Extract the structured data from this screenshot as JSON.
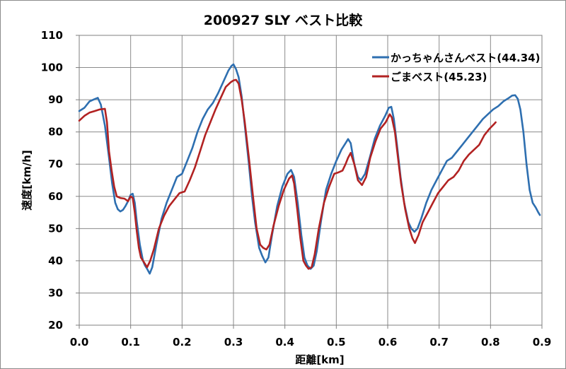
{
  "chart_data": {
    "type": "line",
    "title": "200927 SLY ベスト比較",
    "xlabel": "距離[km]",
    "ylabel": "速度[km/h]",
    "xlim": [
      0,
      0.9
    ],
    "ylim": [
      20,
      110
    ],
    "x_ticks": [
      "0.0",
      "0.1",
      "0.2",
      "0.3",
      "0.4",
      "0.5",
      "0.6",
      "0.7",
      "0.8",
      "0.9"
    ],
    "y_ticks": [
      "20",
      "30",
      "40",
      "50",
      "60",
      "70",
      "80",
      "90",
      "100",
      "110"
    ],
    "grid": true,
    "legend_position": "top-right",
    "series": [
      {
        "name": "かっちゃんさんベスト(44.34)",
        "color": "#2e6fb0",
        "points": [
          [
            0.0,
            86.5
          ],
          [
            0.01,
            87.5
          ],
          [
            0.02,
            89.5
          ],
          [
            0.03,
            90.2
          ],
          [
            0.036,
            90.6
          ],
          [
            0.042,
            88.5
          ],
          [
            0.05,
            82
          ],
          [
            0.058,
            72
          ],
          [
            0.064,
            64
          ],
          [
            0.07,
            58
          ],
          [
            0.075,
            56
          ],
          [
            0.08,
            55.3
          ],
          [
            0.085,
            55.8
          ],
          [
            0.09,
            57
          ],
          [
            0.095,
            58.5
          ],
          [
            0.1,
            60.5
          ],
          [
            0.104,
            60.8
          ],
          [
            0.108,
            58
          ],
          [
            0.112,
            52
          ],
          [
            0.118,
            45
          ],
          [
            0.124,
            40
          ],
          [
            0.128,
            38.5
          ],
          [
            0.132,
            37.5
          ],
          [
            0.137,
            36
          ],
          [
            0.142,
            38
          ],
          [
            0.15,
            45
          ],
          [
            0.16,
            53
          ],
          [
            0.17,
            58
          ],
          [
            0.18,
            62
          ],
          [
            0.19,
            66
          ],
          [
            0.2,
            67
          ],
          [
            0.21,
            71
          ],
          [
            0.22,
            75
          ],
          [
            0.23,
            80
          ],
          [
            0.24,
            84
          ],
          [
            0.25,
            87
          ],
          [
            0.26,
            89
          ],
          [
            0.27,
            92
          ],
          [
            0.28,
            95.5
          ],
          [
            0.29,
            99
          ],
          [
            0.296,
            100.5
          ],
          [
            0.3,
            101
          ],
          [
            0.305,
            99.5
          ],
          [
            0.31,
            97
          ],
          [
            0.316,
            91
          ],
          [
            0.322,
            82
          ],
          [
            0.33,
            70
          ],
          [
            0.336,
            60
          ],
          [
            0.342,
            52
          ],
          [
            0.35,
            44
          ],
          [
            0.356,
            41.5
          ],
          [
            0.362,
            39.5
          ],
          [
            0.368,
            41
          ],
          [
            0.375,
            48
          ],
          [
            0.385,
            57
          ],
          [
            0.395,
            63
          ],
          [
            0.405,
            67
          ],
          [
            0.412,
            68.2
          ],
          [
            0.418,
            66
          ],
          [
            0.425,
            58
          ],
          [
            0.432,
            48
          ],
          [
            0.438,
            41
          ],
          [
            0.444,
            38.5
          ],
          [
            0.45,
            37.5
          ],
          [
            0.456,
            38.5
          ],
          [
            0.462,
            43
          ],
          [
            0.47,
            52
          ],
          [
            0.48,
            62
          ],
          [
            0.49,
            67
          ],
          [
            0.5,
            71
          ],
          [
            0.51,
            74.5
          ],
          [
            0.518,
            76.5
          ],
          [
            0.523,
            77.8
          ],
          [
            0.528,
            76.5
          ],
          [
            0.535,
            70
          ],
          [
            0.542,
            66
          ],
          [
            0.548,
            65
          ],
          [
            0.556,
            67
          ],
          [
            0.565,
            72
          ],
          [
            0.575,
            78
          ],
          [
            0.585,
            82
          ],
          [
            0.595,
            85
          ],
          [
            0.602,
            87.5
          ],
          [
            0.607,
            87.8
          ],
          [
            0.612,
            84
          ],
          [
            0.618,
            76
          ],
          [
            0.625,
            66
          ],
          [
            0.632,
            58
          ],
          [
            0.64,
            52
          ],
          [
            0.646,
            50
          ],
          [
            0.652,
            49
          ],
          [
            0.658,
            50
          ],
          [
            0.665,
            53
          ],
          [
            0.675,
            58
          ],
          [
            0.685,
            62
          ],
          [
            0.695,
            65
          ],
          [
            0.705,
            68
          ],
          [
            0.715,
            71
          ],
          [
            0.725,
            72
          ],
          [
            0.735,
            74
          ],
          [
            0.745,
            76
          ],
          [
            0.755,
            78
          ],
          [
            0.765,
            80
          ],
          [
            0.775,
            82
          ],
          [
            0.785,
            84
          ],
          [
            0.795,
            85.5
          ],
          [
            0.805,
            87
          ],
          [
            0.815,
            88
          ],
          [
            0.825,
            89.5
          ],
          [
            0.835,
            90.5
          ],
          [
            0.842,
            91.3
          ],
          [
            0.848,
            91.4
          ],
          [
            0.853,
            90.3
          ],
          [
            0.858,
            87
          ],
          [
            0.864,
            80
          ],
          [
            0.87,
            70
          ],
          [
            0.876,
            62
          ],
          [
            0.882,
            58
          ],
          [
            0.888,
            56.5
          ],
          [
            0.893,
            55
          ],
          [
            0.896,
            54.2
          ]
        ]
      },
      {
        "name": "ごまベスト(45.23)",
        "color": "#b22222",
        "points": [
          [
            0.0,
            83.5
          ],
          [
            0.01,
            85
          ],
          [
            0.02,
            86
          ],
          [
            0.03,
            86.5
          ],
          [
            0.04,
            87
          ],
          [
            0.05,
            87.2
          ],
          [
            0.054,
            83
          ],
          [
            0.058,
            74
          ],
          [
            0.063,
            68
          ],
          [
            0.068,
            63
          ],
          [
            0.073,
            60
          ],
          [
            0.08,
            59.5
          ],
          [
            0.088,
            59.3
          ],
          [
            0.095,
            58.5
          ],
          [
            0.1,
            60
          ],
          [
            0.104,
            59.5
          ],
          [
            0.108,
            55
          ],
          [
            0.112,
            49
          ],
          [
            0.116,
            44
          ],
          [
            0.12,
            41
          ],
          [
            0.126,
            39.5
          ],
          [
            0.132,
            38
          ],
          [
            0.138,
            40
          ],
          [
            0.145,
            43.5
          ],
          [
            0.155,
            50
          ],
          [
            0.165,
            54
          ],
          [
            0.175,
            57
          ],
          [
            0.185,
            59
          ],
          [
            0.195,
            61
          ],
          [
            0.205,
            61.5
          ],
          [
            0.215,
            65
          ],
          [
            0.225,
            69
          ],
          [
            0.235,
            74
          ],
          [
            0.245,
            79
          ],
          [
            0.255,
            83
          ],
          [
            0.265,
            87
          ],
          [
            0.275,
            90.5
          ],
          [
            0.285,
            94
          ],
          [
            0.295,
            95.5
          ],
          [
            0.3,
            96
          ],
          [
            0.305,
            96.2
          ],
          [
            0.31,
            95
          ],
          [
            0.316,
            90
          ],
          [
            0.322,
            83
          ],
          [
            0.33,
            72
          ],
          [
            0.338,
            60
          ],
          [
            0.345,
            50
          ],
          [
            0.352,
            45
          ],
          [
            0.358,
            44
          ],
          [
            0.364,
            43.5
          ],
          [
            0.37,
            45
          ],
          [
            0.378,
            51
          ],
          [
            0.388,
            57
          ],
          [
            0.398,
            62
          ],
          [
            0.408,
            65.5
          ],
          [
            0.414,
            66.5
          ],
          [
            0.418,
            64
          ],
          [
            0.424,
            56
          ],
          [
            0.43,
            47
          ],
          [
            0.436,
            40
          ],
          [
            0.441,
            38.5
          ],
          [
            0.446,
            37.5
          ],
          [
            0.452,
            38
          ],
          [
            0.458,
            42
          ],
          [
            0.466,
            50
          ],
          [
            0.476,
            58
          ],
          [
            0.486,
            63
          ],
          [
            0.496,
            67
          ],
          [
            0.505,
            67.5
          ],
          [
            0.512,
            68
          ],
          [
            0.518,
            70
          ],
          [
            0.523,
            72
          ],
          [
            0.528,
            73.5
          ],
          [
            0.535,
            70
          ],
          [
            0.542,
            65
          ],
          [
            0.55,
            63.5
          ],
          [
            0.558,
            66
          ],
          [
            0.566,
            72
          ],
          [
            0.576,
            77
          ],
          [
            0.586,
            81
          ],
          [
            0.596,
            83
          ],
          [
            0.604,
            85.5
          ],
          [
            0.608,
            84.5
          ],
          [
            0.614,
            80
          ],
          [
            0.62,
            72
          ],
          [
            0.626,
            64
          ],
          [
            0.634,
            56
          ],
          [
            0.642,
            50
          ],
          [
            0.648,
            47
          ],
          [
            0.653,
            45.5
          ],
          [
            0.66,
            48
          ],
          [
            0.668,
            52
          ],
          [
            0.678,
            55
          ],
          [
            0.688,
            58
          ],
          [
            0.698,
            61
          ],
          [
            0.708,
            63
          ],
          [
            0.718,
            65
          ],
          [
            0.728,
            66
          ],
          [
            0.738,
            68
          ],
          [
            0.748,
            71
          ],
          [
            0.758,
            73
          ],
          [
            0.768,
            74.5
          ],
          [
            0.778,
            76
          ],
          [
            0.788,
            79
          ],
          [
            0.798,
            81
          ],
          [
            0.806,
            82.3
          ],
          [
            0.81,
            83
          ]
        ]
      }
    ]
  }
}
